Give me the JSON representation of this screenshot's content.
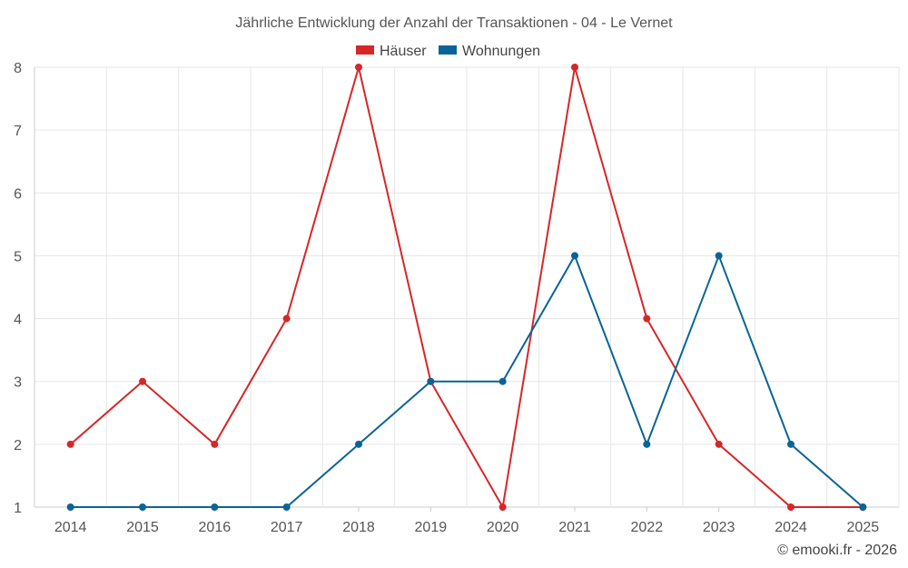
{
  "chart_data": {
    "type": "line",
    "title": "Jährliche Entwicklung der Anzahl der Transaktionen - 04 - Le Vernet",
    "categories": [
      "2014",
      "2015",
      "2016",
      "2017",
      "2018",
      "2019",
      "2020",
      "2021",
      "2022",
      "2023",
      "2024",
      "2025"
    ],
    "series": [
      {
        "name": "Häuser",
        "color": "#d62728",
        "values": [
          2,
          3,
          2,
          4,
          8,
          3,
          1,
          8,
          4,
          2,
          1,
          1
        ]
      },
      {
        "name": "Wohnungen",
        "color": "#0a6496",
        "values": [
          1,
          1,
          1,
          1,
          2,
          3,
          3,
          5,
          2,
          5,
          2,
          1
        ]
      }
    ],
    "ylim": [
      1,
      8
    ],
    "yticks": [
      1,
      2,
      3,
      4,
      5,
      6,
      7,
      8
    ],
    "grid": true,
    "legend": "top-center",
    "xlabel": "",
    "ylabel": ""
  },
  "credit": "© emooki.fr - 2026"
}
